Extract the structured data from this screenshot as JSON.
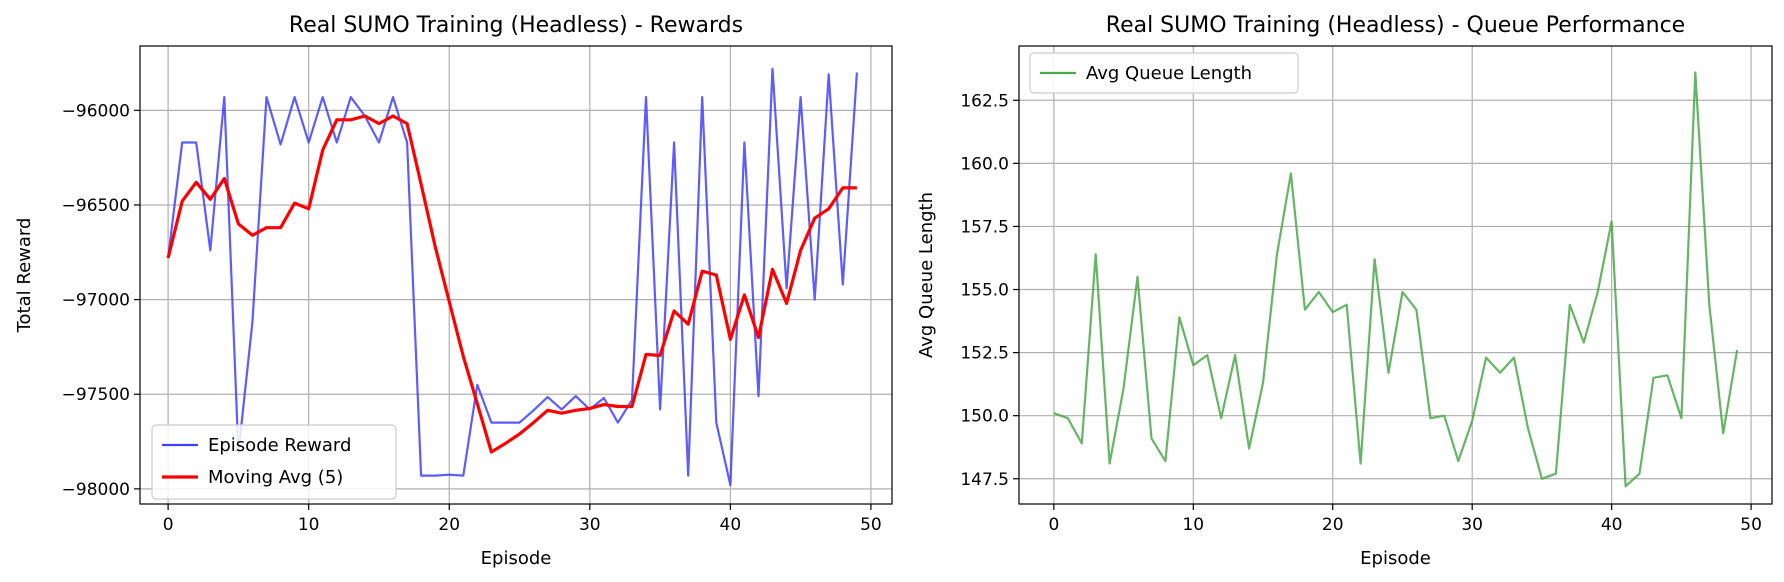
{
  "chart_data": [
    {
      "type": "line",
      "title": "Real SUMO Training (Headless) - Rewards",
      "xlabel": "Episode",
      "ylabel": "Total Reward",
      "xlim": [
        -2,
        51.5
      ],
      "ylim": [
        -98080,
        -95660
      ],
      "xticks": [
        0,
        10,
        20,
        30,
        40,
        50
      ],
      "yticks": [
        -98000,
        -97500,
        -97000,
        -96500,
        -96000
      ],
      "grid": true,
      "legend_position": "lower-left",
      "x": [
        0,
        1,
        2,
        3,
        4,
        5,
        6,
        7,
        8,
        9,
        10,
        11,
        12,
        13,
        14,
        15,
        16,
        17,
        18,
        19,
        20,
        21,
        22,
        23,
        24,
        25,
        26,
        27,
        28,
        29,
        30,
        31,
        32,
        33,
        34,
        35,
        36,
        37,
        38,
        39,
        40,
        41,
        42,
        43,
        44,
        45,
        46,
        47,
        48,
        49
      ],
      "series": [
        {
          "name": "Episode Reward",
          "color": "#4040ff",
          "values": [
            -96780,
            -96170,
            -96170,
            -96740,
            -95930,
            -97810,
            -97120,
            -95930,
            -96180,
            -95930,
            -96170,
            -95930,
            -96170,
            -95930,
            -96030,
            -96170,
            -95930,
            -96170,
            -97930,
            -97930,
            -97925,
            -97930,
            -97450,
            -97650,
            -97650,
            -97650,
            -97585,
            -97515,
            -97580,
            -97510,
            -97580,
            -97520,
            -97650,
            -97530,
            -95930,
            -97580,
            -96170,
            -97930,
            -95930,
            -97650,
            -97980,
            -96170,
            -97510,
            -95780,
            -96940,
            -95930,
            -97000,
            -95810,
            -96920,
            -95800
          ]
        },
        {
          "name": "Moving Avg (5)",
          "color": "#ff0000",
          "values": [
            -96780,
            -96480,
            -96380,
            -96470,
            -96360,
            -96600,
            -96660,
            -96620,
            -96620,
            -96490,
            -96520,
            -96210,
            -96050,
            -96050,
            -96030,
            -96070,
            -96030,
            -96070,
            -96390,
            -96720,
            -97010,
            -97300,
            -97550,
            -97805,
            -97760,
            -97710,
            -97650,
            -97585,
            -97600,
            -97585,
            -97575,
            -97555,
            -97565,
            -97565,
            -97290,
            -97295,
            -97060,
            -97130,
            -96850,
            -96870,
            -97210,
            -96975,
            -97200,
            -96840,
            -97020,
            -96740,
            -96570,
            -96520,
            -96410,
            -96410
          ]
        }
      ]
    },
    {
      "type": "line",
      "title": "Real SUMO Training (Headless) - Queue Performance",
      "xlabel": "Episode",
      "ylabel": "Avg Queue Length",
      "xlim": [
        -2.5,
        51.5
      ],
      "ylim": [
        146.5,
        164.65
      ],
      "xticks": [
        0,
        10,
        20,
        30,
        40,
        50
      ],
      "yticks": [
        147.5,
        150.0,
        152.5,
        155.0,
        157.5,
        160.0,
        162.5
      ],
      "grid": true,
      "legend_position": "top-left",
      "x": [
        0,
        1,
        2,
        3,
        4,
        5,
        6,
        7,
        8,
        9,
        10,
        11,
        12,
        13,
        14,
        15,
        16,
        17,
        18,
        19,
        20,
        21,
        22,
        23,
        24,
        25,
        26,
        27,
        28,
        29,
        30,
        31,
        32,
        33,
        34,
        35,
        36,
        37,
        38,
        39,
        40,
        41,
        42,
        43,
        44,
        45,
        46,
        47,
        48,
        49
      ],
      "series": [
        {
          "name": "Avg Queue Length",
          "color": "#4aa84a",
          "values": [
            150.1,
            149.9,
            148.9,
            156.4,
            148.1,
            151.1,
            155.5,
            149.1,
            148.2,
            153.9,
            152.0,
            152.4,
            149.9,
            152.4,
            148.7,
            151.3,
            156.4,
            159.6,
            154.2,
            154.9,
            154.1,
            154.4,
            148.1,
            156.2,
            151.7,
            154.9,
            154.2,
            149.9,
            150.0,
            148.2,
            149.8,
            152.3,
            151.7,
            152.3,
            149.5,
            147.5,
            147.7,
            154.4,
            152.9,
            154.9,
            157.7,
            147.2,
            147.7,
            151.5,
            151.6,
            149.9,
            163.6,
            154.4,
            149.3,
            152.6
          ]
        }
      ]
    }
  ]
}
